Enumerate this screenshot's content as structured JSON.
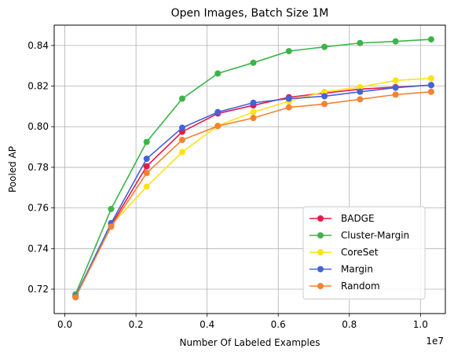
{
  "chart_data": {
    "type": "line",
    "title": "Open Images, Batch Size 1M",
    "xlabel": "Number Of Labeled Examples",
    "ylabel": "Pooled AP",
    "x_offset_label": "1e7",
    "xlim": [
      -0.03,
      1.07
    ],
    "ylim": [
      0.708,
      0.85
    ],
    "xticks": [
      0.0,
      0.2,
      0.4,
      0.6,
      0.8,
      1.0
    ],
    "xtick_labels": [
      "0.0",
      "0.2",
      "0.4",
      "0.6",
      "0.8",
      "1.0"
    ],
    "yticks": [
      0.72,
      0.74,
      0.76,
      0.78,
      0.8,
      0.82,
      0.84
    ],
    "ytick_labels": [
      "0.72",
      "0.74",
      "0.76",
      "0.78",
      "0.80",
      "0.82",
      "0.84"
    ],
    "grid": true,
    "legend_position": "lower-right",
    "x": [
      0.03,
      0.13,
      0.23,
      0.33,
      0.43,
      0.53,
      0.63,
      0.73,
      0.83,
      0.93,
      1.03
    ],
    "series": [
      {
        "name": "BADGE",
        "color": "#e6194b",
        "values": [
          0.7165,
          0.7515,
          0.7805,
          0.7975,
          0.8065,
          0.8105,
          0.8145,
          0.8165,
          0.8185,
          0.8195,
          0.8205
        ]
      },
      {
        "name": "Cluster-Margin",
        "color": "#3cb44b",
        "values": [
          0.7175,
          0.7595,
          0.7925,
          0.8138,
          0.8262,
          0.8315,
          0.8372,
          0.8393,
          0.8412,
          0.842,
          0.843
        ]
      },
      {
        "name": "CoreSet",
        "color": "#ffe119",
        "values": [
          0.7165,
          0.7515,
          0.7705,
          0.7875,
          0.8005,
          0.8072,
          0.8125,
          0.8172,
          0.8195,
          0.8228,
          0.8238
        ]
      },
      {
        "name": "Margin",
        "color": "#4363d8",
        "values": [
          0.7165,
          0.7525,
          0.7842,
          0.7995,
          0.8072,
          0.8118,
          0.8138,
          0.815,
          0.8172,
          0.8192,
          0.8205
        ]
      },
      {
        "name": "Random",
        "color": "#f58231",
        "values": [
          0.716,
          0.7508,
          0.7772,
          0.7935,
          0.8003,
          0.8043,
          0.8095,
          0.8112,
          0.8135,
          0.8158,
          0.8172
        ]
      }
    ]
  }
}
